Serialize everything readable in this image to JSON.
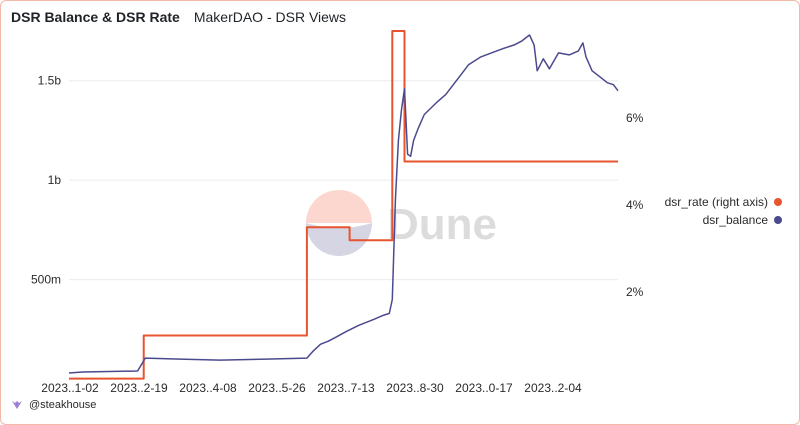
{
  "header": {
    "title": "DSR Balance & DSR Rate",
    "subtitle": "MakerDAO - DSR Views"
  },
  "footer": {
    "author": "@steakhouse"
  },
  "watermark": {
    "text": "Dune"
  },
  "colors": {
    "dsr_rate": "#e8542f",
    "dsr_balance": "#4b4a8f",
    "grid": "#ececec",
    "axis_text": "#2b2b2b",
    "watermark_text": "#dcdcdc",
    "watermark_top": "#fbd7cf",
    "watermark_bottom": "#d5d5e3"
  },
  "chart_data": {
    "type": "line",
    "title": "DSR Balance & DSR Rate",
    "subtitle": "MakerDAO - DSR Views",
    "x_tick_labels": [
      "2023..1-02",
      "2023..2-19",
      "2023..4-08",
      "2023..5-26",
      "2023..7-13",
      "2023..8-30",
      "2023..0-17",
      "2023..2-04"
    ],
    "x_range": [
      "2023-01-01",
      "2023-12-27"
    ],
    "y_left": {
      "ticks": [
        500000000,
        1000000000,
        1500000000
      ],
      "tick_labels": [
        "500m",
        "1b",
        "1.5b"
      ],
      "range": [
        0,
        1750000000
      ]
    },
    "y_right": {
      "ticks": [
        2,
        4,
        6
      ],
      "tick_labels": [
        "2%",
        "4%",
        "6%"
      ],
      "range": [
        0,
        8
      ]
    },
    "grid": true,
    "legend_position": "right",
    "series": [
      {
        "name": "dsr_rate (right axis)",
        "axis": "right",
        "color": "#e8542f",
        "step": true,
        "points": [
          [
            "2023-01-01",
            0.01
          ],
          [
            "2023-02-19",
            1.0
          ],
          [
            "2023-06-06",
            3.49
          ],
          [
            "2023-07-04",
            3.19
          ],
          [
            "2023-07-20",
            3.19
          ],
          [
            "2023-08-01",
            8.0
          ],
          [
            "2023-08-09",
            5.0
          ],
          [
            "2023-12-27",
            5.0
          ]
        ]
      },
      {
        "name": "dsr_balance",
        "axis": "left",
        "color": "#4b4a8f",
        "step": false,
        "points": [
          [
            "2023-01-01",
            30000000
          ],
          [
            "2023-01-10",
            35000000
          ],
          [
            "2023-02-15",
            40000000
          ],
          [
            "2023-02-20",
            105000000
          ],
          [
            "2023-03-15",
            100000000
          ],
          [
            "2023-04-10",
            95000000
          ],
          [
            "2023-05-10",
            100000000
          ],
          [
            "2023-06-06",
            105000000
          ],
          [
            "2023-06-10",
            140000000
          ],
          [
            "2023-06-15",
            175000000
          ],
          [
            "2023-06-20",
            190000000
          ],
          [
            "2023-06-25",
            210000000
          ],
          [
            "2023-07-02",
            240000000
          ],
          [
            "2023-07-10",
            270000000
          ],
          [
            "2023-07-20",
            300000000
          ],
          [
            "2023-07-26",
            320000000
          ],
          [
            "2023-07-30",
            330000000
          ],
          [
            "2023-08-01",
            400000000
          ],
          [
            "2023-08-03",
            900000000
          ],
          [
            "2023-08-05",
            1200000000
          ],
          [
            "2023-08-07",
            1350000000
          ],
          [
            "2023-08-09",
            1460000000
          ],
          [
            "2023-08-11",
            1130000000
          ],
          [
            "2023-08-13",
            1120000000
          ],
          [
            "2023-08-15",
            1200000000
          ],
          [
            "2023-08-18",
            1260000000
          ],
          [
            "2023-08-22",
            1330000000
          ],
          [
            "2023-08-30",
            1390000000
          ],
          [
            "2023-09-05",
            1430000000
          ],
          [
            "2023-09-12",
            1500000000
          ],
          [
            "2023-09-20",
            1580000000
          ],
          [
            "2023-09-28",
            1620000000
          ],
          [
            "2023-10-05",
            1640000000
          ],
          [
            "2023-10-12",
            1660000000
          ],
          [
            "2023-10-20",
            1680000000
          ],
          [
            "2023-10-25",
            1700000000
          ],
          [
            "2023-10-30",
            1730000000
          ],
          [
            "2023-11-02",
            1680000000
          ],
          [
            "2023-11-04",
            1550000000
          ],
          [
            "2023-11-08",
            1610000000
          ],
          [
            "2023-11-12",
            1560000000
          ],
          [
            "2023-11-18",
            1640000000
          ],
          [
            "2023-11-25",
            1630000000
          ],
          [
            "2023-12-01",
            1650000000
          ],
          [
            "2023-12-04",
            1690000000
          ],
          [
            "2023-12-06",
            1620000000
          ],
          [
            "2023-12-10",
            1550000000
          ],
          [
            "2023-12-15",
            1520000000
          ],
          [
            "2023-12-20",
            1490000000
          ],
          [
            "2023-12-24",
            1480000000
          ],
          [
            "2023-12-27",
            1450000000
          ]
        ]
      }
    ]
  }
}
